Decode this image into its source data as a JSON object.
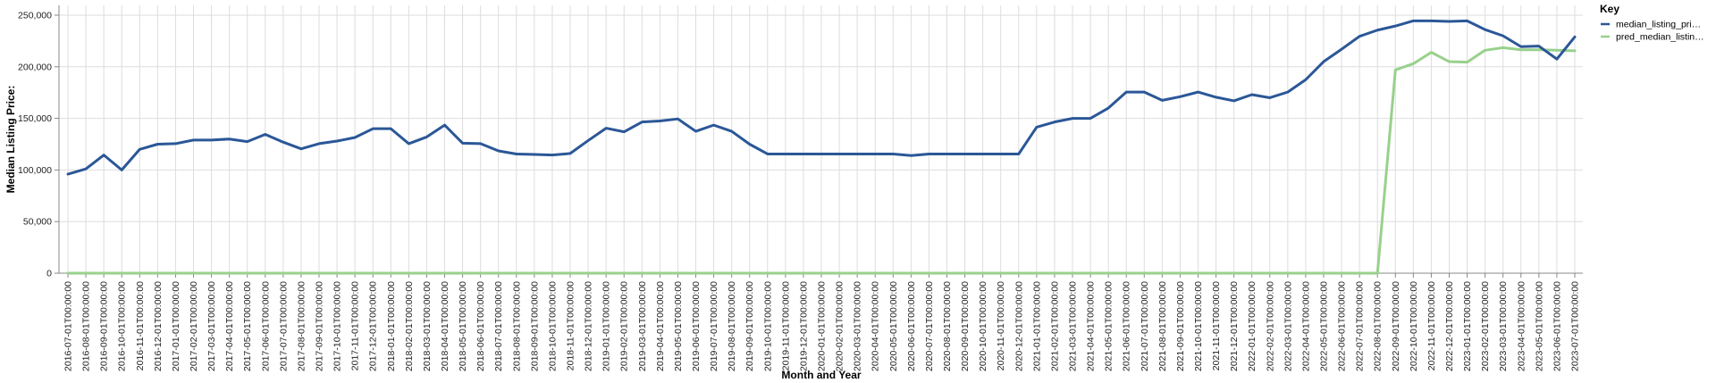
{
  "chart_data": {
    "type": "line",
    "xlabel": "Month and Year",
    "ylabel": "Median Listing Price:",
    "ylim": [
      0,
      250000
    ],
    "yticks": [
      0,
      50000,
      100000,
      150000,
      200000,
      250000
    ],
    "ytick_labels": [
      "0",
      "50,000",
      "100,000",
      "150,000",
      "200,000",
      "250,000"
    ],
    "grid": true,
    "legend": {
      "title": "Key",
      "placement": "right",
      "entries": [
        "median_listing_pri…",
        "pred_median_listin…"
      ]
    },
    "x": [
      "2016-07-01T00:00:00",
      "2016-08-01T00:00:00",
      "2016-09-01T00:00:00",
      "2016-10-01T00:00:00",
      "2016-11-01T00:00:00",
      "2016-12-01T00:00:00",
      "2017-01-01T00:00:00",
      "2017-02-01T00:00:00",
      "2017-03-01T00:00:00",
      "2017-04-01T00:00:00",
      "2017-05-01T00:00:00",
      "2017-06-01T00:00:00",
      "2017-07-01T00:00:00",
      "2017-08-01T00:00:00",
      "2017-09-01T00:00:00",
      "2017-10-01T00:00:00",
      "2017-11-01T00:00:00",
      "2017-12-01T00:00:00",
      "2018-01-01T00:00:00",
      "2018-02-01T00:00:00",
      "2018-03-01T00:00:00",
      "2018-04-01T00:00:00",
      "2018-05-01T00:00:00",
      "2018-06-01T00:00:00",
      "2018-07-01T00:00:00",
      "2018-08-01T00:00:00",
      "2018-09-01T00:00:00",
      "2018-10-01T00:00:00",
      "2018-11-01T00:00:00",
      "2018-12-01T00:00:00",
      "2019-01-01T00:00:00",
      "2019-02-01T00:00:00",
      "2019-03-01T00:00:00",
      "2019-04-01T00:00:00",
      "2019-05-01T00:00:00",
      "2019-06-01T00:00:00",
      "2019-07-01T00:00:00",
      "2019-08-01T00:00:00",
      "2019-09-01T00:00:00",
      "2019-10-01T00:00:00",
      "2019-11-01T00:00:00",
      "2019-12-01T00:00:00",
      "2020-01-01T00:00:00",
      "2020-02-01T00:00:00",
      "2020-03-01T00:00:00",
      "2020-04-01T00:00:00",
      "2020-05-01T00:00:00",
      "2020-06-01T00:00:00",
      "2020-07-01T00:00:00",
      "2020-08-01T00:00:00",
      "2020-09-01T00:00:00",
      "2020-10-01T00:00:00",
      "2020-11-01T00:00:00",
      "2020-12-01T00:00:00",
      "2021-01-01T00:00:00",
      "2021-02-01T00:00:00",
      "2021-03-01T00:00:00",
      "2021-04-01T00:00:00",
      "2021-05-01T00:00:00",
      "2021-06-01T00:00:00",
      "2021-07-01T00:00:00",
      "2021-08-01T00:00:00",
      "2021-09-01T00:00:00",
      "2021-10-01T00:00:00",
      "2021-11-01T00:00:00",
      "2021-12-01T00:00:00",
      "2022-01-01T00:00:00",
      "2022-02-01T00:00:00",
      "2022-03-01T00:00:00",
      "2022-04-01T00:00:00",
      "2022-05-01T00:00:00",
      "2022-06-01T00:00:00",
      "2022-07-01T00:00:00",
      "2022-08-01T00:00:00",
      "2022-09-01T00:00:00",
      "2022-10-01T00:00:00",
      "2022-11-01T00:00:00",
      "2022-12-01T00:00:00",
      "2023-01-01T00:00:00",
      "2023-02-01T00:00:00",
      "2023-03-01T00:00:00",
      "2023-04-01T00:00:00",
      "2023-05-01T00:00:00",
      "2023-06-01T00:00:00",
      "2023-07-01T00:00:00"
    ],
    "series": [
      {
        "name": "median_listing_pri…",
        "color": "#2b5797",
        "values": [
          96000,
          101000,
          114500,
          100000,
          120000,
          125000,
          125500,
          129000,
          129000,
          130000,
          127500,
          134500,
          127000,
          120500,
          125500,
          128000,
          131500,
          140000,
          140000,
          125500,
          132000,
          143500,
          126000,
          125500,
          118500,
          115500,
          115000,
          114500,
          116000,
          128500,
          140500,
          137000,
          146500,
          147500,
          149500,
          137500,
          143500,
          137500,
          125000,
          115500,
          115500,
          115500,
          115500,
          115500,
          115500,
          115500,
          115500,
          114000,
          115500,
          115500,
          115500,
          115500,
          115500,
          115500,
          141500,
          146500,
          150000,
          150000,
          160000,
          175500,
          175500,
          167500,
          171000,
          175500,
          170500,
          167000,
          173000,
          170000,
          175500,
          187500,
          205000,
          217000,
          229500,
          235500,
          239500,
          244500,
          244500,
          244000,
          244500,
          236000,
          230000,
          219500,
          220000,
          207500,
          229000
        ]
      },
      {
        "name": "pred_median_listin…",
        "color": "#98d18c",
        "values": [
          0,
          0,
          0,
          0,
          0,
          0,
          0,
          0,
          0,
          0,
          0,
          0,
          0,
          0,
          0,
          0,
          0,
          0,
          0,
          0,
          0,
          0,
          0,
          0,
          0,
          0,
          0,
          0,
          0,
          0,
          0,
          0,
          0,
          0,
          0,
          0,
          0,
          0,
          0,
          0,
          0,
          0,
          0,
          0,
          0,
          0,
          0,
          0,
          0,
          0,
          0,
          0,
          0,
          0,
          0,
          0,
          0,
          0,
          0,
          0,
          0,
          0,
          0,
          0,
          0,
          0,
          0,
          0,
          0,
          0,
          0,
          0,
          0,
          0,
          197000,
          203000,
          214000,
          205000,
          204500,
          216000,
          218500,
          216500,
          216500,
          216000,
          215500
        ]
      }
    ]
  }
}
